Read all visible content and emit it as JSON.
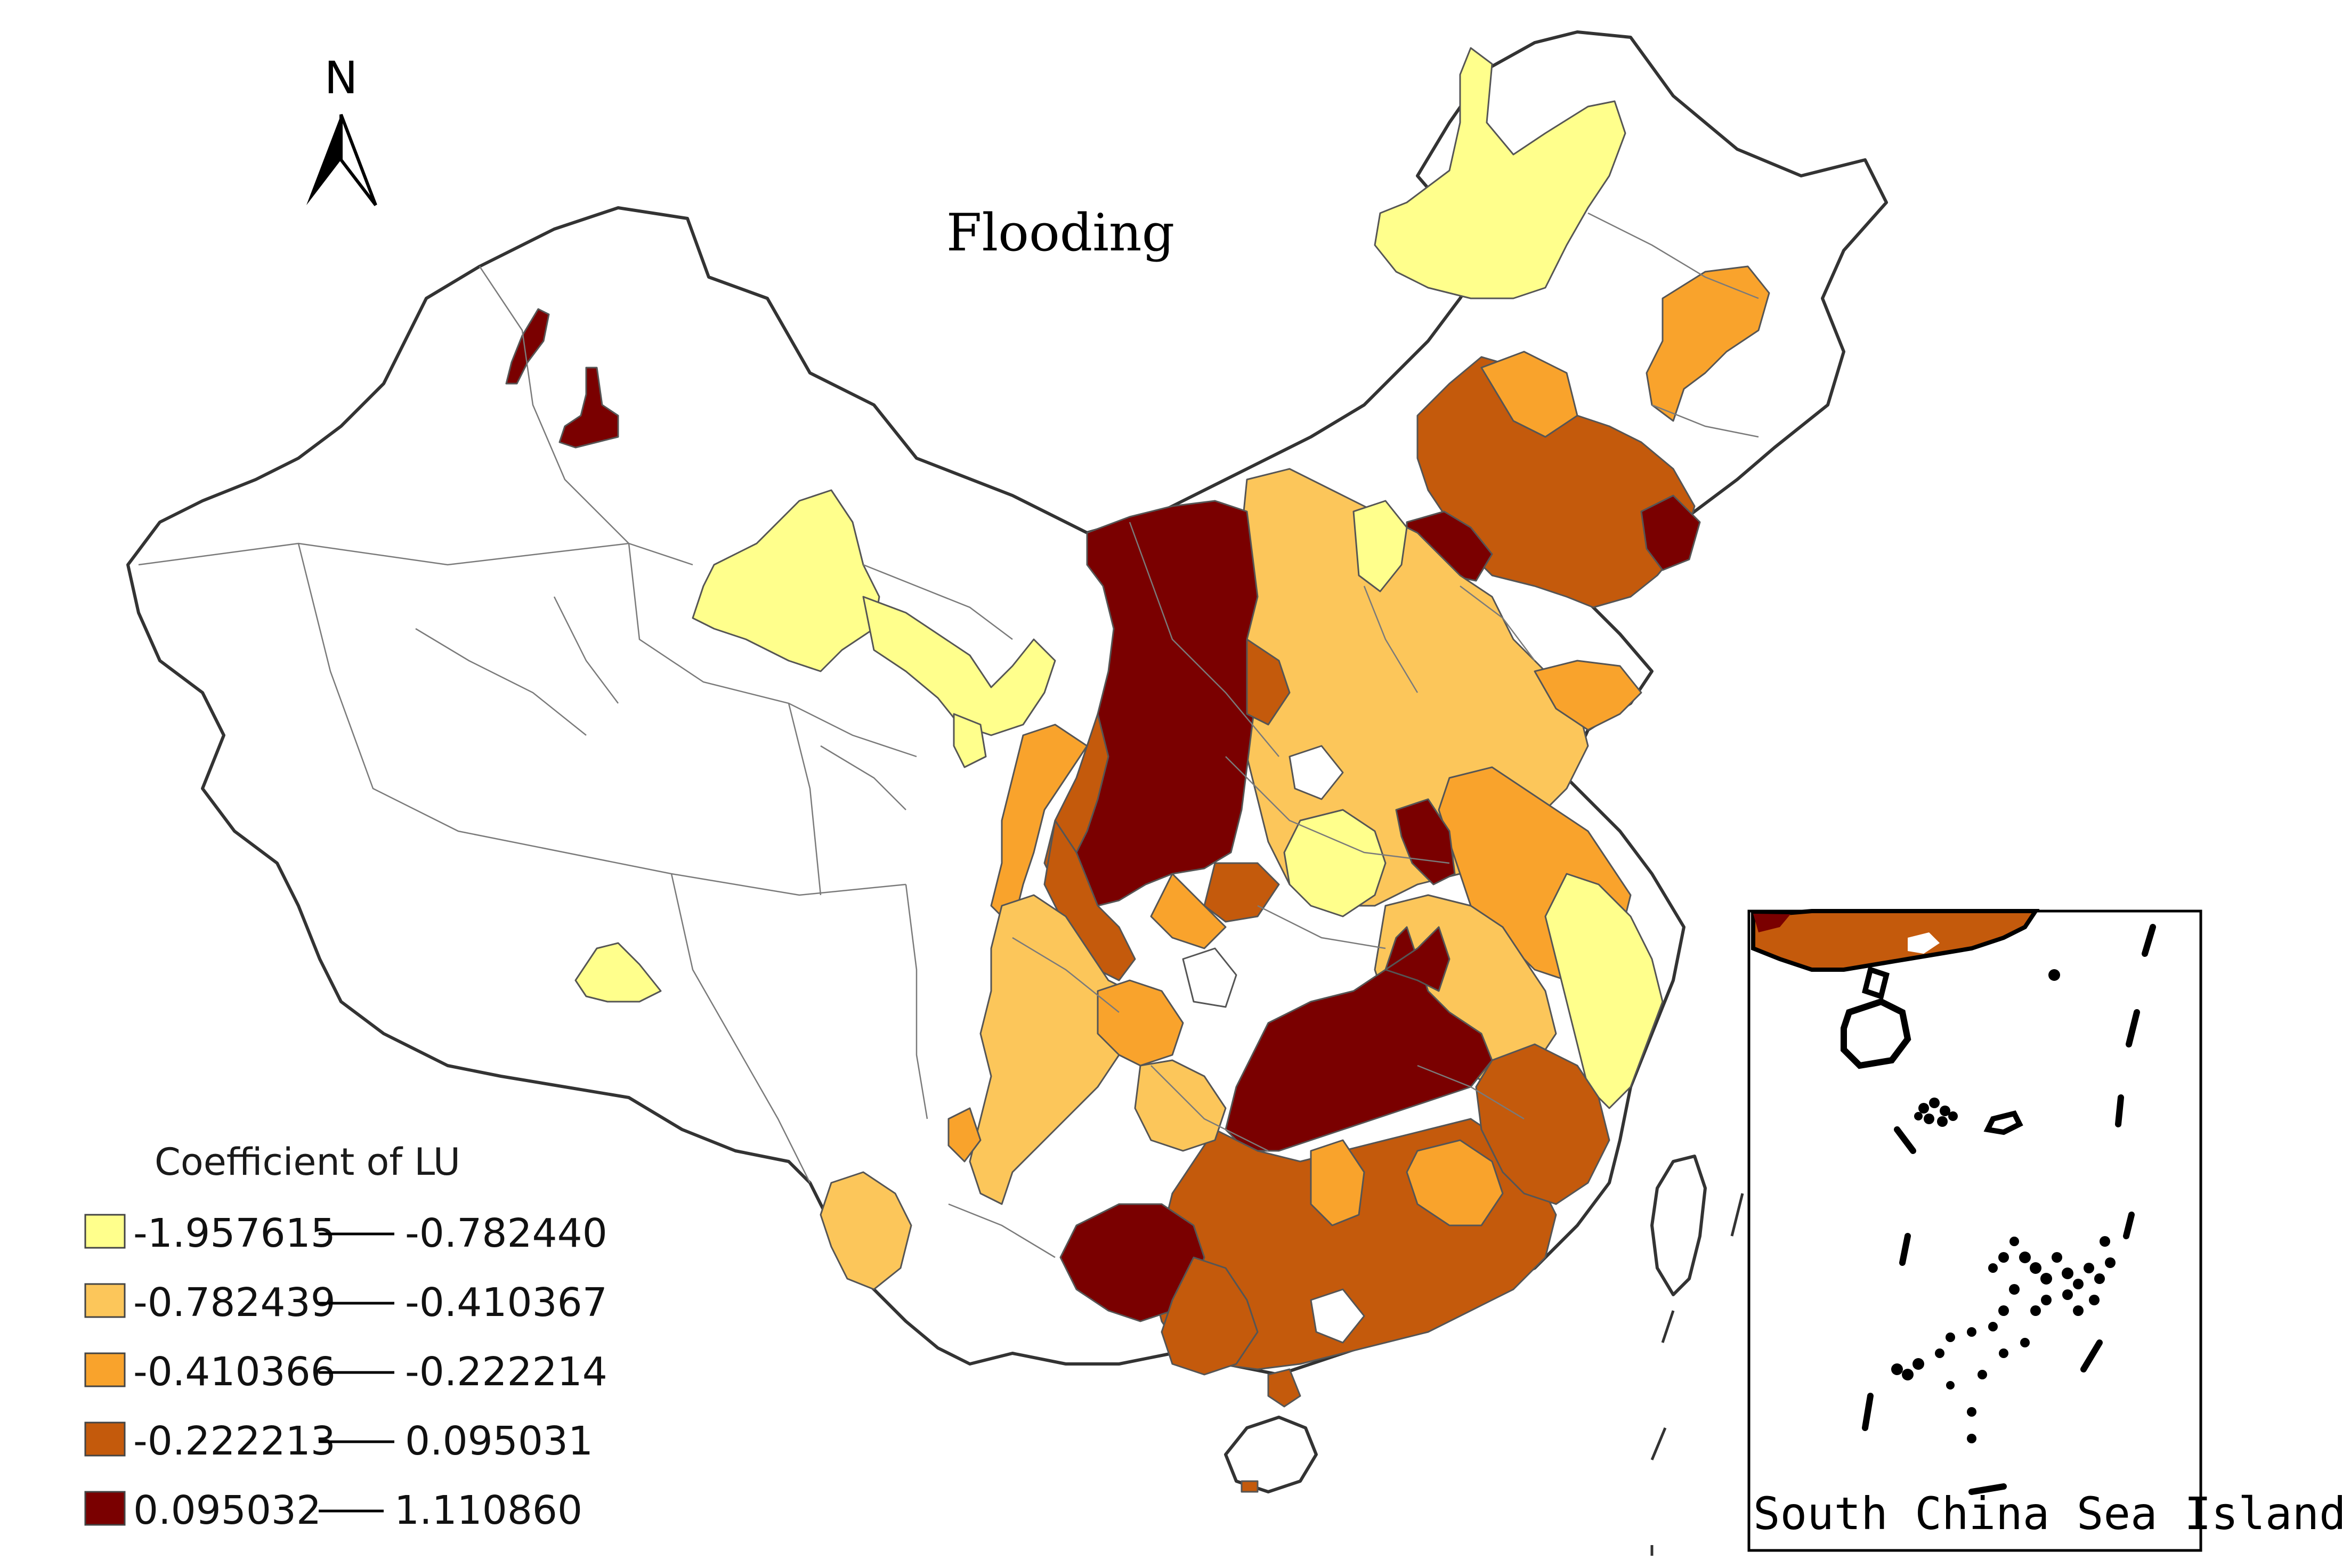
{
  "map": {
    "title": "Flooding",
    "north_label": "N",
    "legend": {
      "title": "Coefficient of LU",
      "classes": [
        {
          "min": "-1.957615",
          "max": "-0.782440",
          "color": "#ffff8c"
        },
        {
          "min": "-0.782439",
          "max": "-0.410367",
          "color": "#fcc65a"
        },
        {
          "min": "-0.410366",
          "max": "-0.222214",
          "color": "#f9a32c"
        },
        {
          "min": "-0.222213",
          "max": "0.095031",
          "color": "#c45a0c"
        },
        {
          "min": "0.095032",
          "max": "1.110860",
          "color": "#7a0000"
        }
      ]
    },
    "inset": {
      "label": "South China Sea Islands"
    }
  }
}
